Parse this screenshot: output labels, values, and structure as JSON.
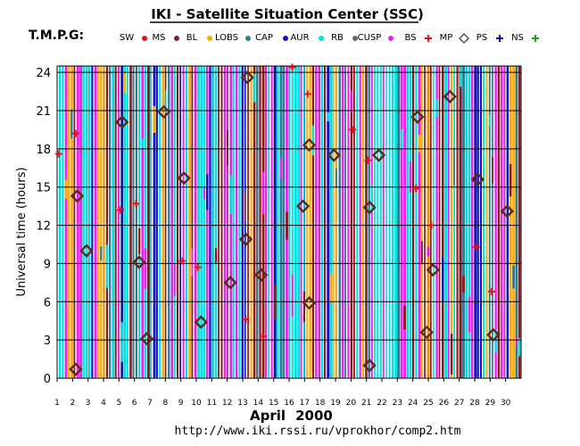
{
  "chart_data": {
    "type": "scatter",
    "title": "IKI - Satellite Situation Center (SSC)",
    "subtitle": "T.M.P.G:",
    "xlabel_month": "April",
    "xlabel_year": "2000",
    "ylabel": "Universal time (hours)",
    "footer_url": "http://www.iki.rssi.ru/vprokhor/comp2.htm",
    "xlim": [
      1,
      31
    ],
    "ylim": [
      0,
      24.5
    ],
    "x_ticks": [
      "1",
      "2",
      "3",
      "4",
      "5",
      "6",
      "7",
      "8",
      "9",
      "10",
      "11",
      "12",
      "13",
      "14",
      "15",
      "16",
      "17",
      "18",
      "19",
      "20",
      "21",
      "22",
      "23",
      "24",
      "25",
      "26",
      "27",
      "28",
      "29",
      "30"
    ],
    "y_ticks": [
      "0",
      "3",
      "6",
      "9",
      "12",
      "15",
      "18",
      "21",
      "24"
    ],
    "grid": true,
    "legend_position": "top",
    "legend": [
      {
        "label": "SW",
        "marker": "dot",
        "color": "#ee1111"
      },
      {
        "label": "MS",
        "marker": "dot",
        "color": "#772233"
      },
      {
        "label": "BL",
        "marker": "dot",
        "color": "#ffaa00"
      },
      {
        "label": "LOBS",
        "marker": "dot",
        "color": "#2a7a9a"
      },
      {
        "label": "CAP",
        "marker": "dot",
        "color": "#1111cc"
      },
      {
        "label": "AUR",
        "marker": "dot",
        "color": "#00e0e0"
      },
      {
        "label": "RB",
        "marker": "dot",
        "color": "#666666"
      },
      {
        "label": "CUSP",
        "marker": "dot",
        "color": "#ee22ee"
      },
      {
        "label": "BS",
        "marker": "plus",
        "color": "#ee1111"
      },
      {
        "label": "MP",
        "marker": "diamond",
        "color": "#444444"
      },
      {
        "label": "PS",
        "marker": "plus",
        "color": "#1111aa"
      },
      {
        "label": "NS",
        "marker": "plus",
        "color": "#11aa11"
      }
    ],
    "stripe_colors": [
      "#8b1a1a",
      "#00e0e0",
      "#ee22ee",
      "#1111cc",
      "#00e0e0",
      "#ffaa00",
      "#8b1a1a",
      "#2a7a9a",
      "#ee22ee",
      "#00e0e0"
    ],
    "bs_points": [
      {
        "x": 1.1,
        "y": 17.6
      },
      {
        "x": 2.2,
        "y": 19.2
      },
      {
        "x": 5.1,
        "y": 13.2
      },
      {
        "x": 6.1,
        "y": 13.7
      },
      {
        "x": 9.1,
        "y": 9.2
      },
      {
        "x": 10.1,
        "y": 8.7
      },
      {
        "x": 13.2,
        "y": 4.6
      },
      {
        "x": 14.3,
        "y": 3.3
      },
      {
        "x": 16.2,
        "y": 24.4
      },
      {
        "x": 17.2,
        "y": 22.3
      },
      {
        "x": 20.1,
        "y": 19.5
      },
      {
        "x": 21.1,
        "y": 17.1
      },
      {
        "x": 24.2,
        "y": 14.9
      },
      {
        "x": 25.2,
        "y": 12.0
      },
      {
        "x": 28.1,
        "y": 10.3
      },
      {
        "x": 29.1,
        "y": 6.8
      }
    ],
    "mp_points": [
      {
        "x": 2.2,
        "y": 0.7
      },
      {
        "x": 2.3,
        "y": 14.3
      },
      {
        "x": 2.9,
        "y": 10.0
      },
      {
        "x": 5.2,
        "y": 20.1
      },
      {
        "x": 6.3,
        "y": 9.1
      },
      {
        "x": 6.8,
        "y": 3.1
      },
      {
        "x": 7.9,
        "y": 20.9
      },
      {
        "x": 9.2,
        "y": 15.7
      },
      {
        "x": 10.3,
        "y": 4.4
      },
      {
        "x": 12.2,
        "y": 7.5
      },
      {
        "x": 13.2,
        "y": 10.9
      },
      {
        "x": 13.3,
        "y": 23.6
      },
      {
        "x": 14.2,
        "y": 8.1
      },
      {
        "x": 16.9,
        "y": 13.5
      },
      {
        "x": 17.3,
        "y": 18.3
      },
      {
        "x": 17.3,
        "y": 5.9
      },
      {
        "x": 18.9,
        "y": 17.5
      },
      {
        "x": 21.2,
        "y": 13.4
      },
      {
        "x": 21.2,
        "y": 1.0
      },
      {
        "x": 21.8,
        "y": 17.5
      },
      {
        "x": 24.3,
        "y": 20.5
      },
      {
        "x": 24.9,
        "y": 3.6
      },
      {
        "x": 25.3,
        "y": 8.5
      },
      {
        "x": 26.4,
        "y": 22.1
      },
      {
        "x": 28.2,
        "y": 15.6
      },
      {
        "x": 29.2,
        "y": 3.4
      },
      {
        "x": 30.1,
        "y": 13.1
      }
    ]
  }
}
